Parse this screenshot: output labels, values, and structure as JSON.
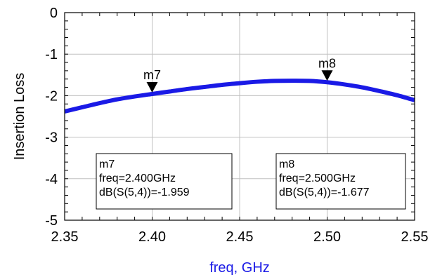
{
  "chart_data": {
    "type": "line",
    "xlabel": "freq, GHz",
    "ylabel": "Insertion Loss",
    "xlim": [
      2.35,
      2.55
    ],
    "ylim": [
      -5,
      0
    ],
    "x_ticks": [
      "2.35",
      "2.40",
      "2.45",
      "2.50",
      "2.55"
    ],
    "y_ticks": [
      "0",
      "-1",
      "-2",
      "-3",
      "-4",
      "-5"
    ],
    "grid": true,
    "colors": {
      "line": "#1a1ae6",
      "xlabel": "#1a1ae6",
      "grid": "#c0c0c0"
    },
    "series": [
      {
        "x": [
          2.35,
          2.36,
          2.37,
          2.38,
          2.39,
          2.4,
          2.41,
          2.42,
          2.43,
          2.44,
          2.45,
          2.46,
          2.47,
          2.48,
          2.49,
          2.5,
          2.51,
          2.52,
          2.53,
          2.54,
          2.55
        ],
        "values": [
          -2.38,
          -2.28,
          -2.18,
          -2.09,
          -2.02,
          -1.959,
          -1.9,
          -1.84,
          -1.79,
          -1.74,
          -1.7,
          -1.665,
          -1.645,
          -1.64,
          -1.645,
          -1.677,
          -1.73,
          -1.8,
          -1.89,
          -1.99,
          -2.11
        ]
      }
    ],
    "markers": [
      {
        "name": "m7",
        "x": 2.4,
        "y": -1.959,
        "lines": [
          "m7",
          "freq=2.400GHz",
          "dB(S(5,4))=-1.959"
        ]
      },
      {
        "name": "m8",
        "x": 2.5,
        "y": -1.677,
        "lines": [
          "m8",
          "freq=2.500GHz",
          "dB(S(5,4))=-1.677"
        ]
      }
    ]
  }
}
